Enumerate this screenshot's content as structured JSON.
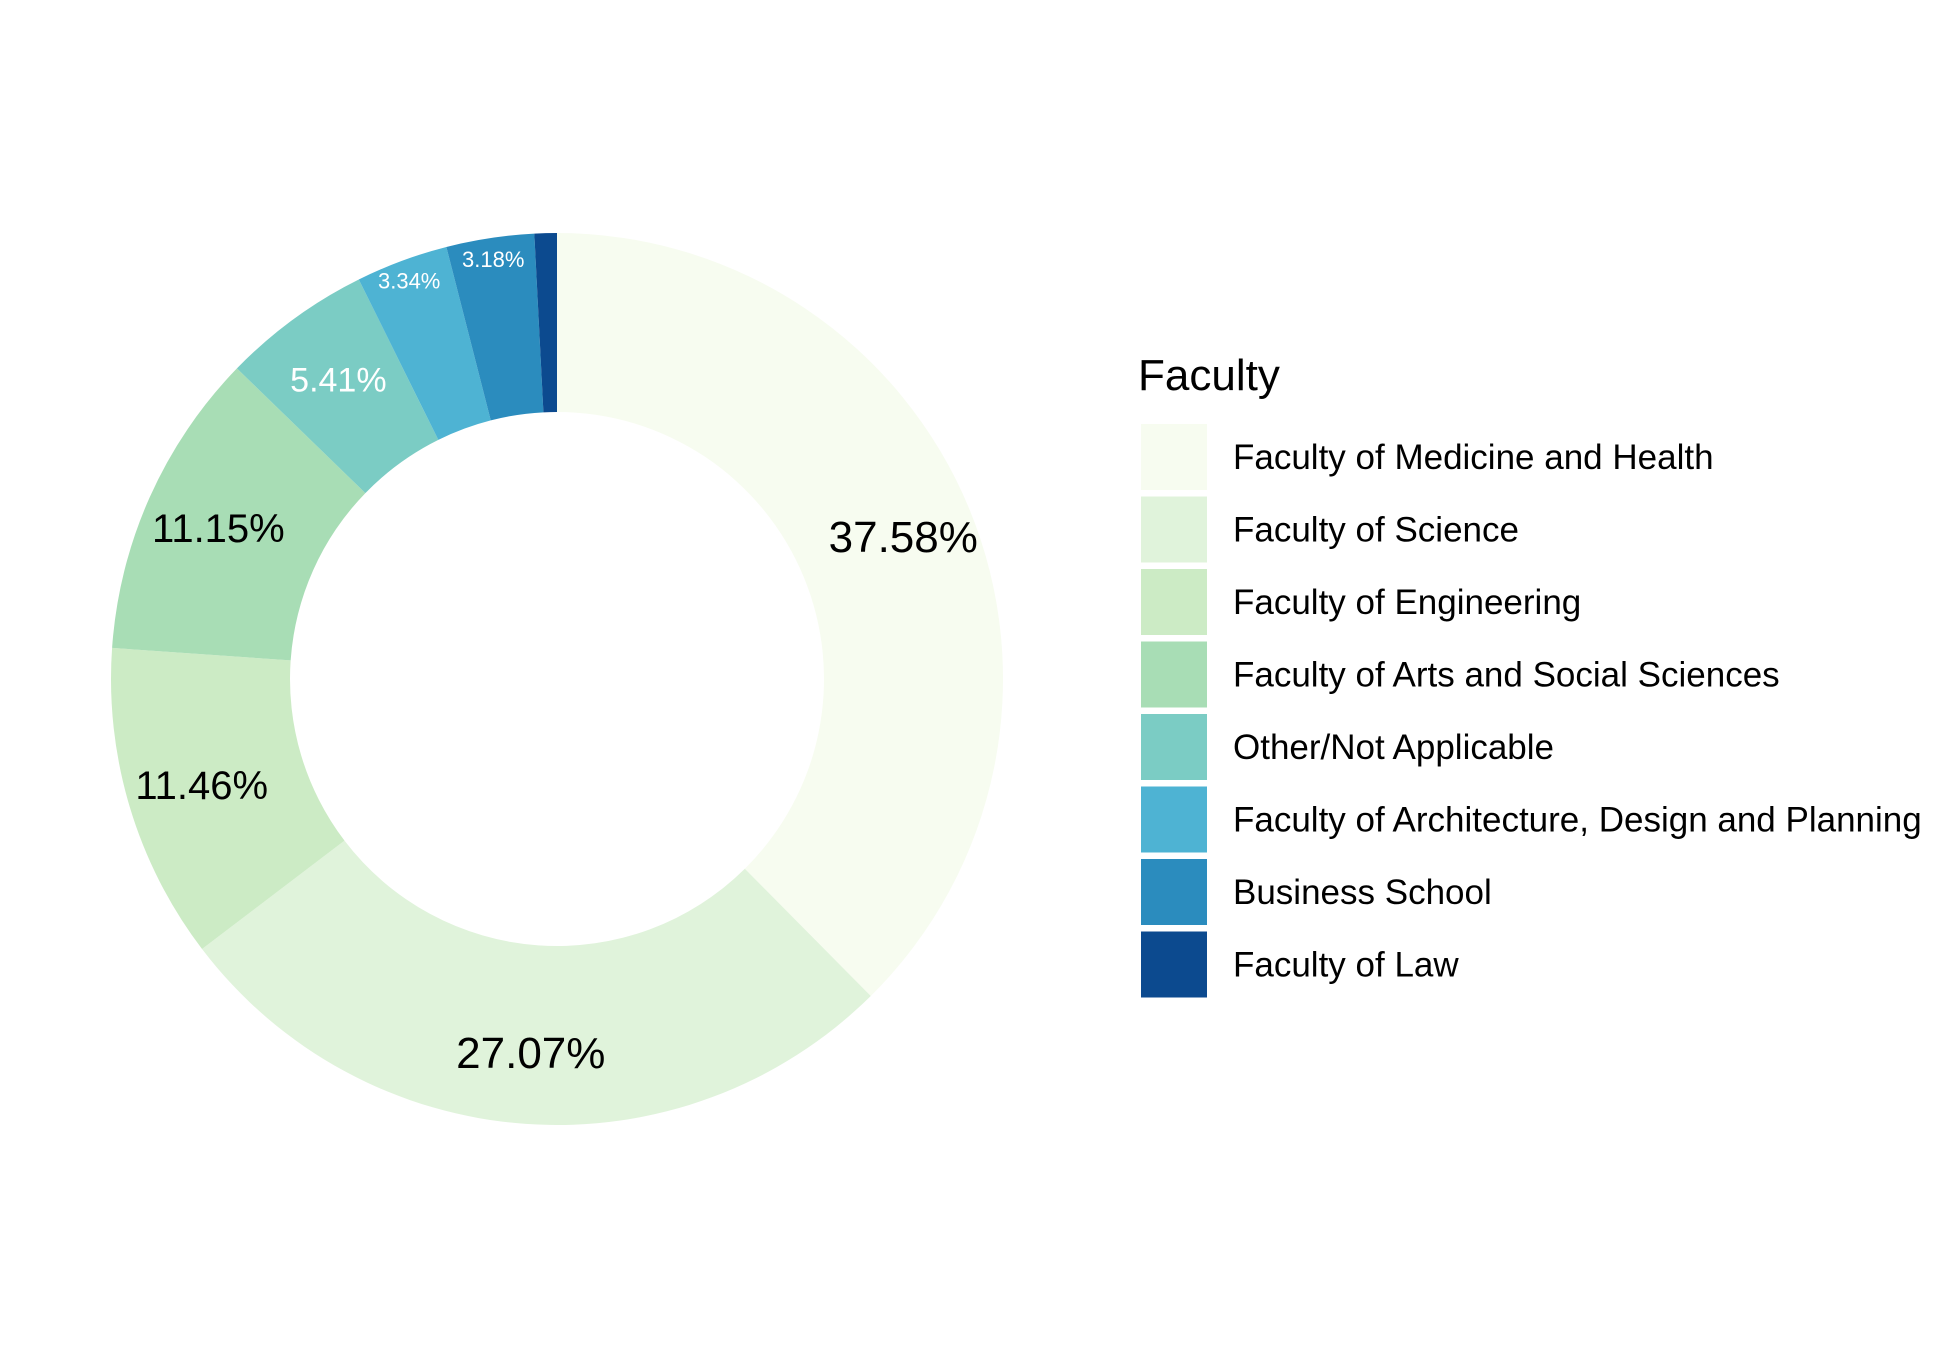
{
  "chart_data": {
    "type": "pie",
    "variant": "donut",
    "legend_title": "Faculty",
    "legend_position": "right",
    "slices": [
      {
        "label": "Faculty of Medicine and Health",
        "value": 37.58,
        "display": "37.58%",
        "color": "#f7fcf0",
        "label_color": "#000000",
        "label_size": "large"
      },
      {
        "label": "Faculty of Science",
        "value": 27.07,
        "display": "27.07%",
        "color": "#e0f3db",
        "label_color": "#000000",
        "label_size": "large"
      },
      {
        "label": "Faculty of Engineering",
        "value": 11.46,
        "display": "11.46%",
        "color": "#ccebc5",
        "label_color": "#000000",
        "label_size": "medium"
      },
      {
        "label": "Faculty of Arts and Social Sciences",
        "value": 11.15,
        "display": "11.15%",
        "color": "#a8ddb5",
        "label_color": "#000000",
        "label_size": "medium"
      },
      {
        "label": "Other/Not Applicable",
        "value": 5.41,
        "display": "5.41%",
        "color": "#7bccc4",
        "label_color": "#ffffff",
        "label_size": "small"
      },
      {
        "label": "Faculty of Architecture, Design and Planning",
        "value": 3.34,
        "display": "3.34%",
        "color": "#4eb3d3",
        "label_color": "#ffffff",
        "label_size": "tiny"
      },
      {
        "label": "Business School",
        "value": 3.18,
        "display": "3.18%",
        "color": "#2b8cbe",
        "label_color": "#ffffff",
        "label_size": "tiny"
      },
      {
        "label": "Faculty of Law",
        "value": 0.81,
        "display": "",
        "color": "#0c4a8f",
        "label_color": "#ffffff",
        "label_size": "none"
      }
    ]
  }
}
